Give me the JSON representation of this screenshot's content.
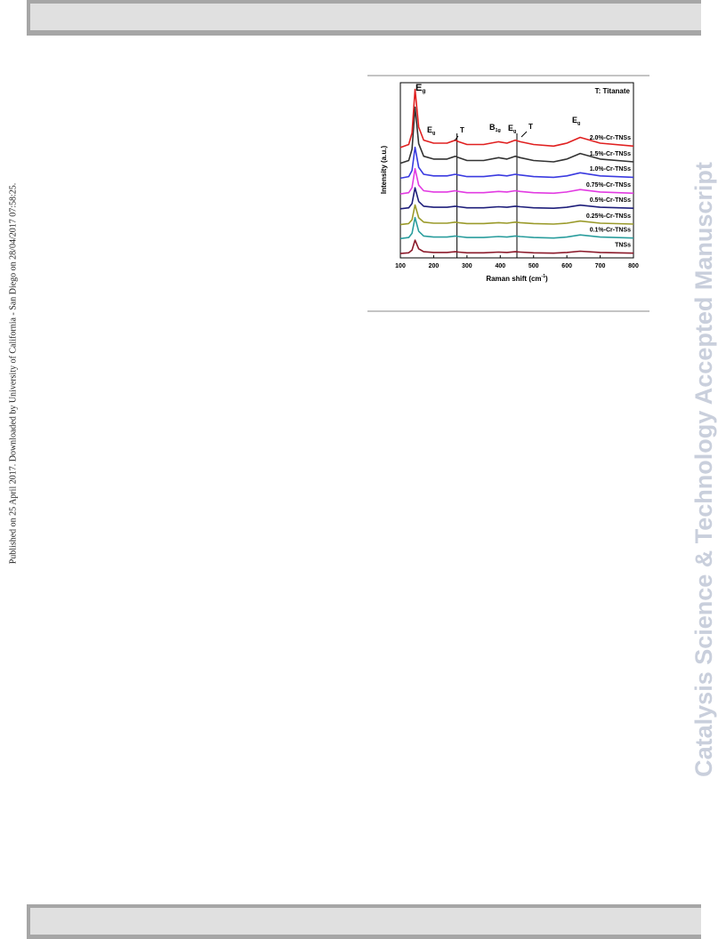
{
  "page": {
    "side_note": "Published on 25 April 2017. Downloaded by University of California - San Diego on 28/04/2017 07:58:25.",
    "watermark": "Catalysis Science & Technology Accepted Manuscript"
  },
  "chart_data": {
    "type": "line",
    "xlabel": {
      "text": "Raman shift (cm",
      "sup": "-1",
      "end": ")"
    },
    "ylabel": "Intensity (a.u.)",
    "note": "T: Titanate",
    "annotations": [
      {
        "text": "E",
        "sub": "g"
      },
      {
        "text": "E",
        "sub": "g"
      },
      {
        "text": "T"
      },
      {
        "text": "B",
        "sub": "1g"
      },
      {
        "text": "E",
        "sub": "g"
      },
      {
        "text": "T"
      },
      {
        "text": "E",
        "sub": "g"
      }
    ],
    "reference_lines_x": [
      270,
      450
    ],
    "xlim": [
      100,
      800
    ],
    "xticks": [
      100,
      200,
      300,
      400,
      500,
      600,
      700,
      800
    ],
    "ylim": [
      0,
      100
    ],
    "x": [
      100,
      125,
      135,
      144,
      155,
      170,
      200,
      240,
      265,
      275,
      300,
      350,
      395,
      420,
      445,
      460,
      500,
      560,
      600,
      640,
      700,
      800
    ],
    "series": [
      {
        "name": "TNSs",
        "color": "#8b1a2a",
        "values": [
          2.5,
          2.9,
          4.4,
          10.1,
          5.2,
          3.5,
          3.1,
          3.1,
          3.5,
          3.3,
          2.9,
          2.9,
          3.3,
          3.1,
          3.5,
          3.3,
          2.9,
          2.7,
          3.1,
          3.8,
          3.1,
          2.7
        ]
      },
      {
        "name": "0.1%-Cr-TNSs",
        "color": "#2a9d9d",
        "values": [
          11,
          11.6,
          14,
          23,
          15.2,
          12.5,
          11.9,
          11.9,
          12.5,
          12.2,
          11.6,
          11.6,
          12.2,
          11.9,
          12.5,
          12.2,
          11.6,
          11.3,
          11.9,
          13.1,
          11.9,
          11.3
        ]
      },
      {
        "name": "0.25%-Cr-TNSs",
        "color": "#9a9a2a",
        "values": [
          19,
          19.6,
          21.8,
          30.2,
          22.9,
          20.4,
          19.8,
          19.8,
          20.4,
          20.1,
          19.6,
          19.6,
          20.1,
          19.8,
          20.4,
          20.1,
          19.6,
          19.3,
          19.8,
          21,
          19.8,
          19.3
        ]
      },
      {
        "name": "0.5%-Cr-TNSs",
        "color": "#1e1e7a",
        "values": [
          28,
          28.6,
          31,
          40,
          32.2,
          29.5,
          28.9,
          28.9,
          29.5,
          29.2,
          28.6,
          28.6,
          29.2,
          28.9,
          29.5,
          29.2,
          28.6,
          28.3,
          28.9,
          30.1,
          28.9,
          28.3
        ]
      },
      {
        "name": "0.75%-Cr-TNSs",
        "color": "#e23be2",
        "values": [
          36.5,
          37.2,
          40.1,
          50.9,
          41.5,
          38.3,
          37.6,
          37.6,
          38.3,
          37.9,
          37.2,
          37.2,
          37.9,
          37.6,
          38.3,
          37.9,
          37.2,
          36.9,
          37.6,
          39,
          37.6,
          36.9
        ]
      },
      {
        "name": "1.0%-Cr-TNSs",
        "color": "#3a3ae0",
        "values": [
          45.5,
          46.4,
          49.9,
          63.1,
          51.7,
          47.7,
          46.8,
          46.8,
          47.7,
          47.3,
          46.4,
          46.4,
          47.3,
          46.8,
          47.7,
          47.3,
          46.4,
          46,
          46.8,
          48.6,
          46.8,
          46
        ]
      },
      {
        "name": "1.5%-Cr-TNSs",
        "color": "#333333",
        "values": [
          54,
          55.6,
          62,
          86,
          65.2,
          58,
          56.4,
          56.4,
          58,
          57.2,
          55.6,
          55.6,
          57.2,
          56.4,
          58,
          57.2,
          55.6,
          54.8,
          56.4,
          59.6,
          56.4,
          54.8
        ]
      },
      {
        "name": "2.0%-Cr-TNSs",
        "color": "#e02020",
        "values": [
          63,
          64.7,
          71.3,
          96.2,
          74.6,
          67.2,
          65.5,
          65.5,
          67.2,
          66.3,
          64.7,
          64.7,
          66.3,
          65.5,
          67.2,
          66.3,
          64.7,
          63.8,
          65.5,
          68.8,
          65.5,
          63.8
        ]
      }
    ]
  }
}
